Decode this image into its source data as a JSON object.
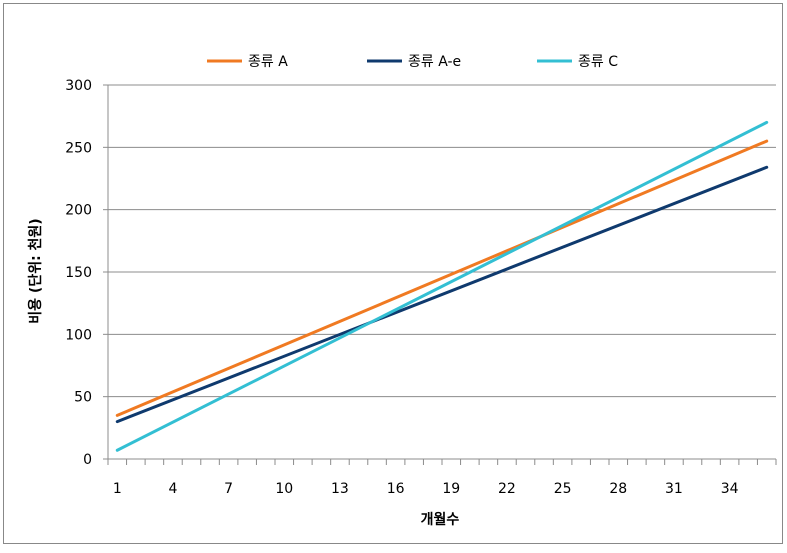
{
  "chart_data": {
    "type": "line",
    "title": "",
    "xlabel": "개월수",
    "ylabel": "비용 (단위: 천원)",
    "ylim": [
      0,
      300
    ],
    "yticks": [
      0,
      50,
      100,
      150,
      200,
      250,
      300
    ],
    "xlim": [
      1,
      36
    ],
    "xticks": [
      1,
      4,
      7,
      10,
      13,
      16,
      19,
      22,
      25,
      28,
      31,
      34
    ],
    "grid": "horizontal",
    "legend_position": "top",
    "series": [
      {
        "name": "종류 A",
        "color": "#F07A22",
        "start": [
          1,
          35
        ],
        "end": [
          36,
          255
        ]
      },
      {
        "name": "종류 A-e",
        "color": "#0F3A6E",
        "start": [
          1,
          30
        ],
        "end": [
          36,
          234
        ]
      },
      {
        "name": "종류 C",
        "color": "#33BFD3",
        "start": [
          1,
          7
        ],
        "end": [
          36,
          270
        ]
      }
    ]
  }
}
